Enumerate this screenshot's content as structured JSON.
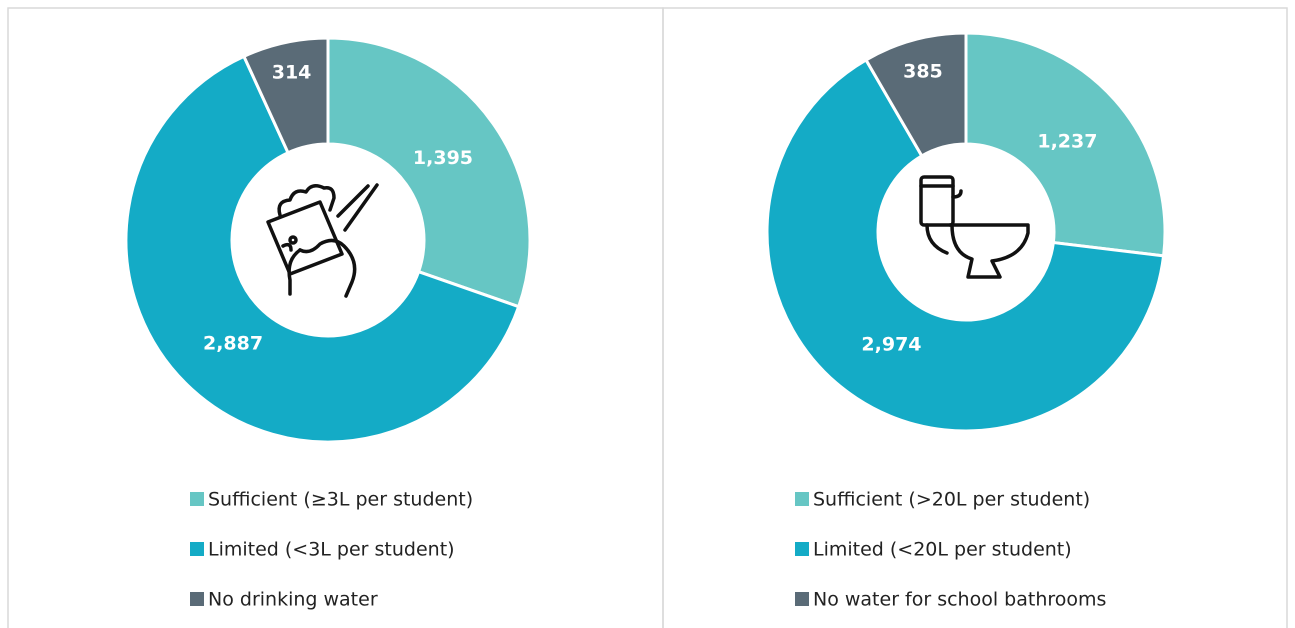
{
  "chart_data": [
    {
      "type": "donut",
      "categories": [
        "Sufficient (≥3L per student)",
        "Limited (<3L per student)",
        "No drinking water"
      ],
      "values": [
        1395,
        2887,
        314
      ],
      "value_labels": [
        "1,395",
        "2,887",
        "314"
      ],
      "colors": [
        "#66c6c4",
        "#14abc6",
        "#5a6b77"
      ]
    },
    {
      "type": "donut",
      "categories": [
        "Sufficient (>20L per student)",
        "Limited (<20L per student)",
        "No water for school bathrooms"
      ],
      "values": [
        1237,
        2974,
        385
      ],
      "value_labels": [
        "1,237",
        "2,974",
        "385"
      ],
      "colors": [
        "#66c6c4",
        "#14abc6",
        "#5a6b77"
      ]
    }
  ]
}
